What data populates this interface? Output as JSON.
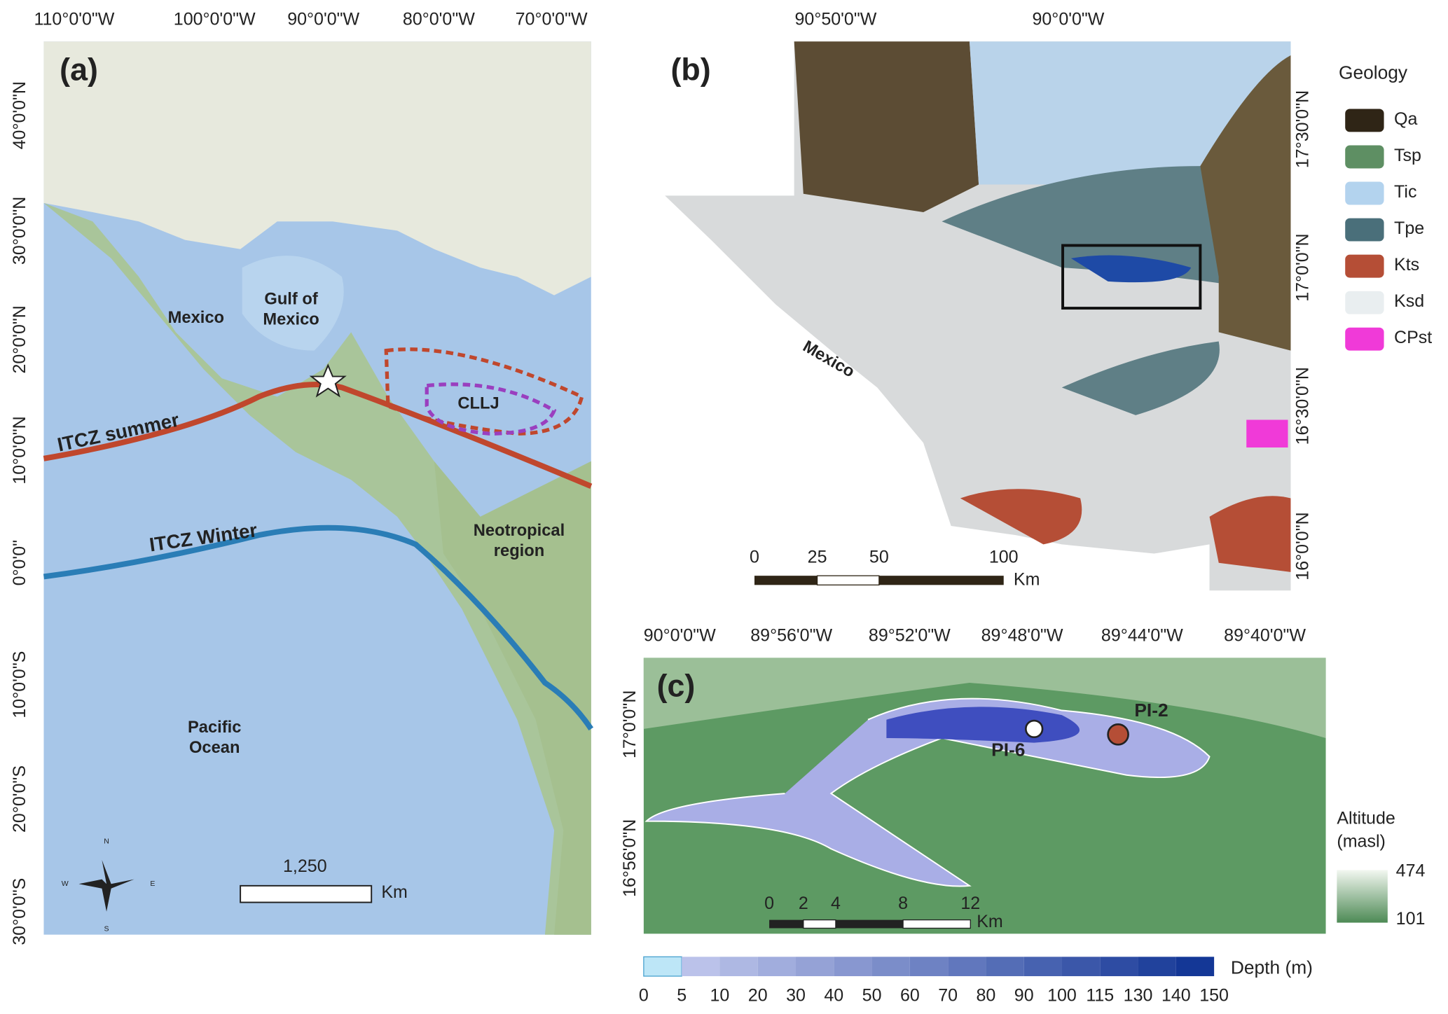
{
  "panel_a": {
    "label": "(a)",
    "lon_labels": [
      "110°0'0\"W",
      "100°0'0\"W",
      "90°0'0\"W",
      "80°0'0\"W",
      "70°0'0\"W"
    ],
    "lat_labels": [
      "40°0'0\"N",
      "30°0'0\"N",
      "20°0'0\"N",
      "10°0'0\"N",
      "0°0'0\"",
      "10°0'0\"S",
      "20°0'0\"S",
      "30°0'0\"S"
    ],
    "places": [
      [
        "Mexico"
      ],
      [
        "Gulf of",
        "Mexico"
      ],
      [
        "CLLJ"
      ],
      [
        "Neotropical",
        "region"
      ],
      [
        "Pacific",
        "Ocean"
      ]
    ],
    "lines": [
      "ITCZ summer",
      "ITCZ Winter"
    ],
    "scale": {
      "value": "1,250",
      "unit": "Km"
    },
    "compass": [
      "N",
      "S",
      "W",
      "E"
    ]
  },
  "panel_b": {
    "label": "(b)",
    "lon_labels": [
      "90°50'0\"W",
      "90°0'0\"W"
    ],
    "lat_labels": [
      "17°30'0\"N",
      "17°0'0\"N",
      "16°30'0\"N",
      "16°0'0\"N"
    ],
    "place": "Mexico",
    "scale": {
      "ticks": [
        "0",
        "25",
        "50",
        "100"
      ],
      "unit": "Km"
    }
  },
  "legend": {
    "title": "Geology",
    "items": [
      {
        "name": "Qa",
        "color": "#2f2516"
      },
      {
        "name": "Tsp",
        "color": "#5e8f63"
      },
      {
        "name": "Tic",
        "color": "#b3d3ee"
      },
      {
        "name": "Tpe",
        "color": "#4a6f7a"
      },
      {
        "name": "Kts",
        "color": "#b54e36"
      },
      {
        "name": "Ksd",
        "color": "#e9eef0"
      },
      {
        "name": "CPst",
        "color": "#f03ad8"
      }
    ]
  },
  "panel_c": {
    "label": "(c)",
    "lon_labels": [
      "90°0'0\"W",
      "89°56'0\"W",
      "89°52'0\"W",
      "89°48'0\"W",
      "89°44'0\"W",
      "89°40'0\"W"
    ],
    "lat_labels": [
      "17°0'0\"N",
      "16°56'0\"N"
    ],
    "points": [
      "PI-6",
      "PI-2"
    ],
    "scale": {
      "ticks": [
        "0",
        "2",
        "4",
        "8",
        "12"
      ],
      "unit": "Km"
    },
    "altitude": {
      "title": [
        "Altitude",
        "(masl)"
      ],
      "max": "474",
      "min": "101"
    },
    "depth": {
      "title": "Depth (m)",
      "ticks": [
        "0",
        "5",
        "10",
        "20",
        "30",
        "40",
        "50",
        "60",
        "70",
        "80",
        "90",
        "100",
        "115",
        "130",
        "140",
        "150"
      ]
    }
  }
}
